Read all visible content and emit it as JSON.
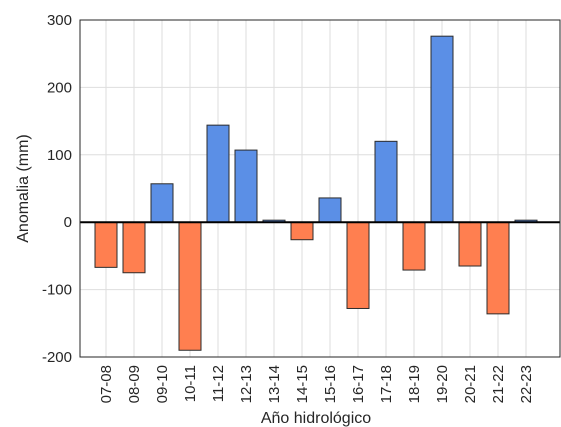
{
  "chart_data": {
    "type": "bar",
    "categories": [
      "07-08",
      "08-09",
      "09-10",
      "10-11",
      "11-12",
      "12-13",
      "13-14",
      "14-15",
      "15-16",
      "16-17",
      "17-18",
      "18-19",
      "19-20",
      "20-21",
      "21-22",
      "22-23"
    ],
    "values": [
      -67,
      -75,
      57,
      -190,
      144,
      107,
      3,
      -26,
      36,
      -128,
      120,
      -71,
      276,
      -65,
      -136,
      3
    ],
    "title": "",
    "xlabel": "Año hidrológico",
    "ylabel": "Anomalia (mm)",
    "ylim": [
      -200,
      300
    ],
    "yticks": [
      -200,
      -100,
      0,
      100,
      200,
      300
    ],
    "grid": true,
    "colors": {
      "positive": "#5b8fe6",
      "negative": "#ff7f50",
      "zero_line": "#000000"
    }
  }
}
